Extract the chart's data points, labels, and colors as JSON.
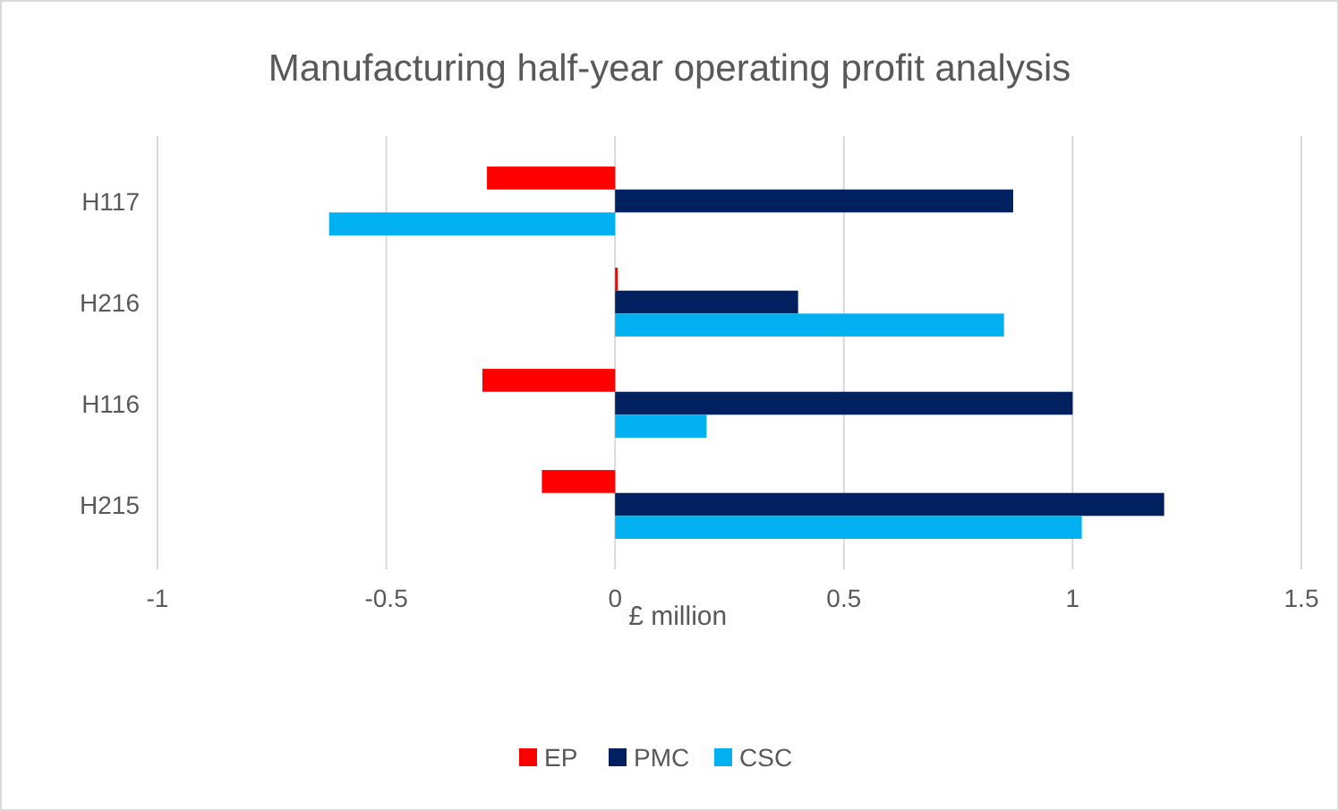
{
  "chart_data": {
    "type": "bar",
    "orientation": "horizontal",
    "title": "Manufacturing half-year operating profit analysis",
    "xlabel": "£ million",
    "categories": [
      "H117",
      "H216",
      "H116",
      "H215"
    ],
    "series": [
      {
        "name": "EP",
        "color": "#ff0000",
        "values": [
          -0.28,
          0.006,
          -0.29,
          -0.16
        ]
      },
      {
        "name": "PMC",
        "color": "#002060",
        "values": [
          0.87,
          0.4,
          1.0,
          1.2
        ]
      },
      {
        "name": "CSC",
        "color": "#00b0f0",
        "values": [
          -0.625,
          0.85,
          0.2,
          1.02
        ]
      }
    ],
    "xlim": [
      -1,
      1.5
    ],
    "xticks": [
      -1,
      -0.5,
      0,
      0.5,
      1,
      1.5
    ],
    "grid": "x",
    "legend": "bottom"
  }
}
